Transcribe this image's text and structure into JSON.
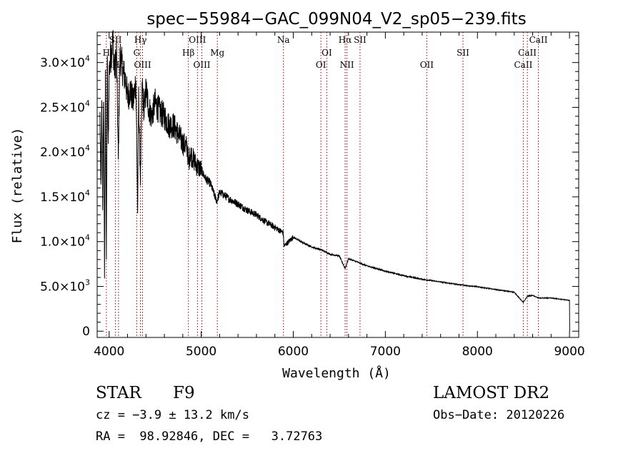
{
  "chart_data": {
    "type": "line",
    "title": "spec−55984−GAC_099N04_V2_sp05−239.fits",
    "xlabel": "Wavelength (Å)",
    "ylabel": "Flux (relative)",
    "xlim": [
      3870,
      9100
    ],
    "ylim": [
      -700,
      33400
    ],
    "x_ticks": [
      4000,
      5000,
      6000,
      7000,
      8000,
      9000
    ],
    "y_ticks": [
      {
        "value": 0,
        "label": "0"
      },
      {
        "value": 5000,
        "label": "5.0×10",
        "exp": "3"
      },
      {
        "value": 10000,
        "label": "1.0×10",
        "exp": "4"
      },
      {
        "value": 15000,
        "label": "1.5×10",
        "exp": "4"
      },
      {
        "value": 20000,
        "label": "2.0×10",
        "exp": "4"
      },
      {
        "value": 25000,
        "label": "2.5×10",
        "exp": "4"
      },
      {
        "value": 30000,
        "label": "3.0×10",
        "exp": "4"
      }
    ],
    "grid": false,
    "series": [
      {
        "color": "#000000",
        "x": [
          3900,
          3910,
          3920,
          3930,
          3940,
          3950,
          3960,
          3970,
          3980,
          3990,
          4000,
          4020,
          4040,
          4060,
          4080,
          4100,
          4110,
          4120,
          4150,
          4180,
          4200,
          4230,
          4260,
          4290,
          4300,
          4310,
          4320,
          4340,
          4360,
          4380,
          4400,
          4430,
          4460,
          4500,
          4550,
          4600,
          4650,
          4700,
          4750,
          4800,
          4850,
          4861,
          4880,
          4900,
          4950,
          5000,
          5050,
          5100,
          5150,
          5170,
          5200,
          5250,
          5300,
          5400,
          5500,
          5600,
          5700,
          5800,
          5890,
          5900,
          6000,
          6100,
          6200,
          6300,
          6400,
          6500,
          6563,
          6600,
          6700,
          6800,
          7000,
          7200,
          7400,
          7600,
          7800,
          8000,
          8200,
          8400,
          8498,
          8542,
          8600,
          8662,
          8800,
          9000,
          9005
        ],
        "y": [
          24000,
          16000,
          25000,
          14000,
          27000,
          6000,
          28000,
          8000,
          31000,
          20000,
          29000,
          31000,
          32500,
          29000,
          31000,
          19000,
          27000,
          31000,
          29000,
          28000,
          26000,
          27000,
          25500,
          28000,
          21000,
          13500,
          26000,
          17000,
          27500,
          24500,
          27000,
          25000,
          24000,
          25500,
          24500,
          24000,
          23000,
          23000,
          22000,
          21000,
          20500,
          18500,
          20000,
          19500,
          18500,
          18000,
          17000,
          16500,
          15000,
          14500,
          15500,
          15200,
          14800,
          14200,
          13500,
          13000,
          12200,
          11600,
          11000,
          9500,
          10500,
          9900,
          9400,
          9100,
          8600,
          8400,
          7000,
          8100,
          7700,
          7300,
          6700,
          6200,
          5800,
          5500,
          5200,
          4950,
          4650,
          4350,
          3200,
          3900,
          4000,
          3700,
          3700,
          3450,
          0
        ],
        "noise": 0.03
      }
    ],
    "annotations": [
      {
        "wavelength": 3970,
        "label": "H",
        "row": 1
      },
      {
        "wavelength": 4069,
        "label": "SII",
        "row": 0
      },
      {
        "wavelength": 4102,
        "label": "Hδ",
        "row": 2
      },
      {
        "wavelength": 4300,
        "label": "G",
        "row": 1
      },
      {
        "wavelength": 4340,
        "label": "Hγ",
        "row": 0
      },
      {
        "wavelength": 4363,
        "label": "OIII",
        "row": 2
      },
      {
        "wavelength": 4861,
        "label": "Hβ",
        "row": 1
      },
      {
        "wavelength": 4959,
        "label": "OIII",
        "row": 0
      },
      {
        "wavelength": 5007,
        "label": "OIII",
        "row": 2
      },
      {
        "wavelength": 5175,
        "label": "Mg",
        "row": 1
      },
      {
        "wavelength": 5893,
        "label": "Na",
        "row": 0
      },
      {
        "wavelength": 6300,
        "label": "OI",
        "row": 2
      },
      {
        "wavelength": 6364,
        "label": "OI",
        "row": 1
      },
      {
        "wavelength": 6563,
        "label": "Hα",
        "row": 0
      },
      {
        "wavelength": 6583,
        "label": "NII",
        "row": 2
      },
      {
        "wavelength": 6725,
        "label": "SII",
        "row": 0
      },
      {
        "wavelength": 7450,
        "label": "OII",
        "row": 2
      },
      {
        "wavelength": 7843,
        "label": "SII",
        "row": 1
      },
      {
        "wavelength": 8498,
        "label": "CaII",
        "row": 2
      },
      {
        "wavelength": 8542,
        "label": "CaII",
        "row": 1
      },
      {
        "wavelength": 8662,
        "label": "CaII",
        "row": 0
      }
    ],
    "annotation_color": "#8b0000"
  },
  "info": {
    "object_class": "STAR",
    "subclass": "F9",
    "redshift": "cz = −3.9 ± 13.2 km/s",
    "coordinates": "RA =  98.92846, DEC =   3.72763",
    "survey": "LAMOST DR2",
    "obs_date": "Obs−Date: 20120226"
  }
}
